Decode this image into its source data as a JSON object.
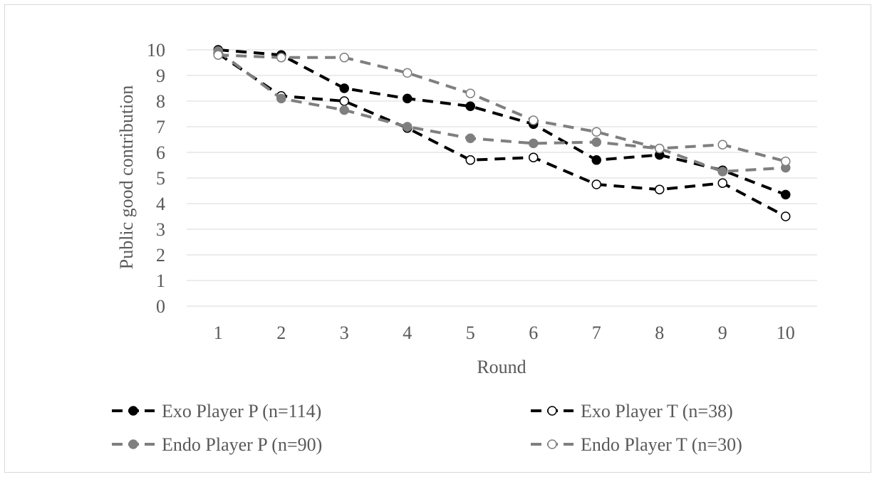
{
  "chart_data": {
    "type": "line",
    "title": "",
    "xlabel": "Round",
    "ylabel": "Public good contribution",
    "categories": [
      "1",
      "2",
      "3",
      "4",
      "5",
      "6",
      "7",
      "8",
      "9",
      "10"
    ],
    "ylim": [
      0,
      10
    ],
    "yticks": [
      "0",
      "1",
      "2",
      "3",
      "4",
      "5",
      "6",
      "7",
      "8",
      "9",
      "10"
    ],
    "grid": true,
    "legend_position": "bottom",
    "series": [
      {
        "name": "Exo Player P (n=114)",
        "values": [
          10.0,
          9.8,
          8.5,
          8.1,
          7.8,
          7.1,
          5.7,
          5.9,
          5.3,
          4.35
        ],
        "color": "#000000",
        "marker": "filled"
      },
      {
        "name": "Exo Player T (n=38)",
        "values": [
          9.85,
          8.2,
          8.0,
          6.95,
          5.7,
          5.8,
          4.75,
          4.55,
          4.8,
          3.5
        ],
        "color": "#000000",
        "marker": "hollow"
      },
      {
        "name": "Endo Player P (n=90)",
        "values": [
          9.95,
          8.1,
          7.65,
          7.0,
          6.55,
          6.35,
          6.4,
          6.15,
          5.25,
          5.4
        ],
        "color": "#7f7f7f",
        "marker": "filled"
      },
      {
        "name": "Endo Player T (n=30)",
        "values": [
          9.8,
          9.7,
          9.7,
          9.1,
          8.3,
          7.25,
          6.8,
          6.15,
          6.3,
          5.65
        ],
        "color": "#7f7f7f",
        "marker": "hollow"
      }
    ]
  }
}
